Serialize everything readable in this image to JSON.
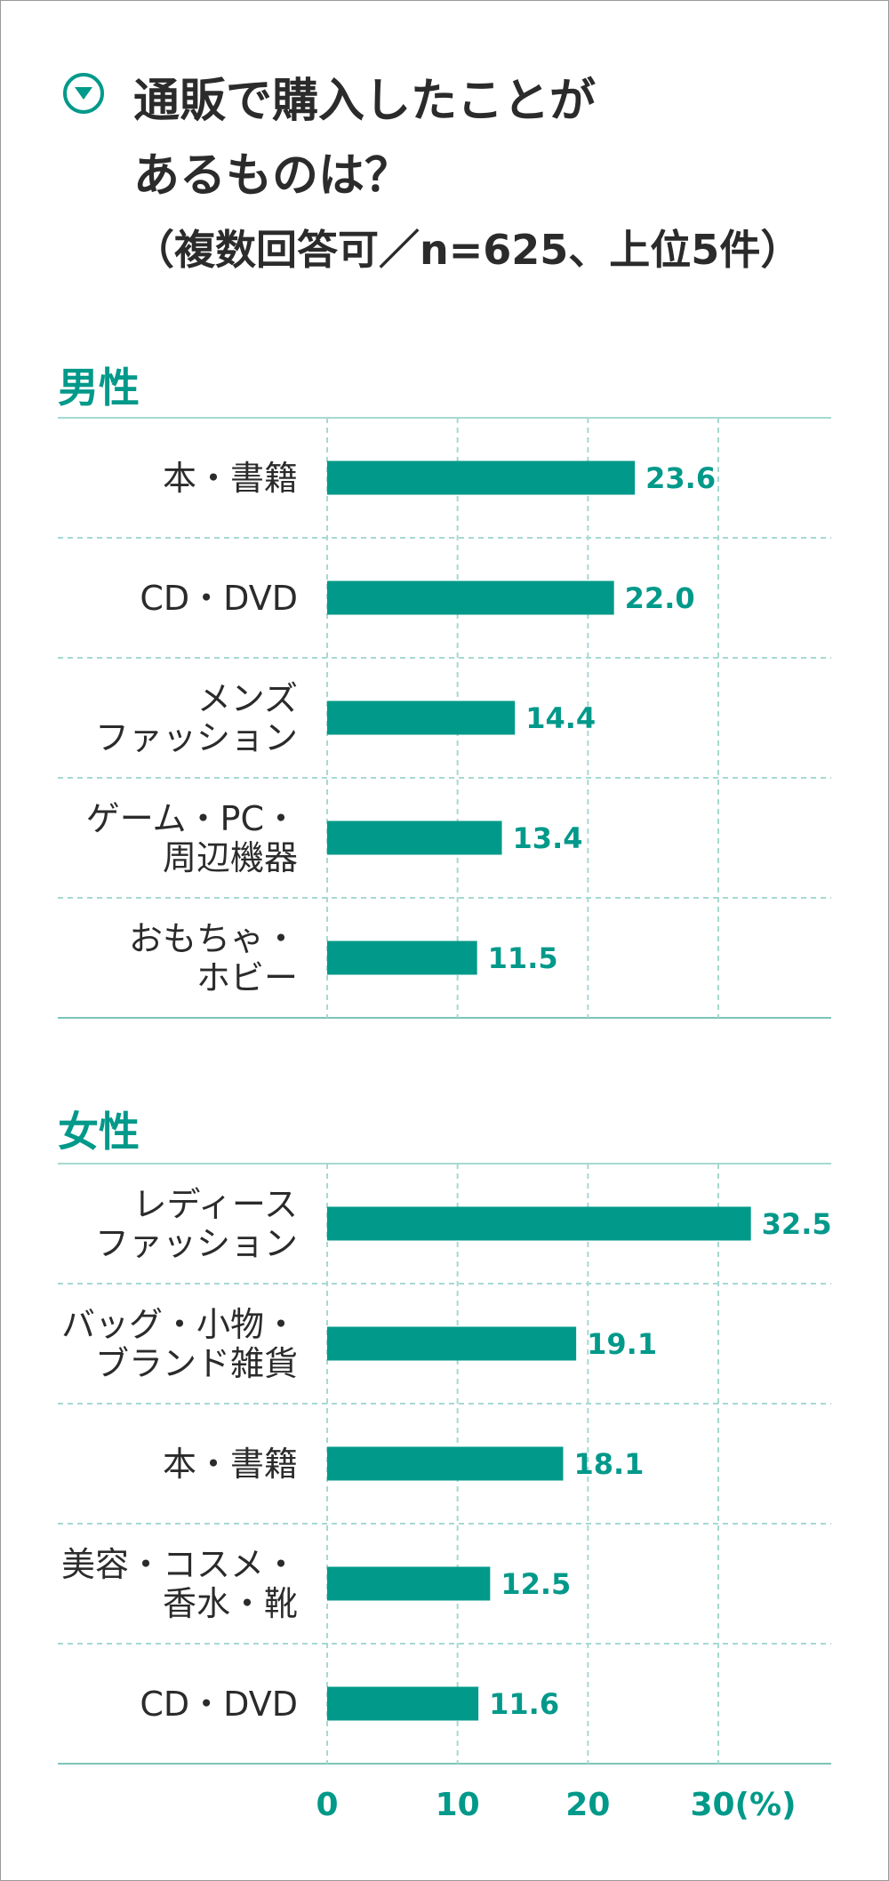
{
  "title": "通販で購入したことが\nあるものは？",
  "subtitle": "（複数回答可／n=625、上位5件）",
  "chart_data": [
    {
      "type": "bar",
      "title": "男性",
      "categories": [
        "本・書籍",
        "CD・DVD",
        "メンズ\nファッション",
        "ゲーム・PC・\n周辺機器",
        "おもちゃ・\nホビー"
      ],
      "values": [
        23.6,
        22.0,
        14.4,
        13.4,
        11.5
      ],
      "value_labels": [
        "23.6",
        "22.0",
        "14.4",
        "13.4",
        "11.5"
      ],
      "color": "#00998a",
      "xlim": [
        0,
        30
      ],
      "xticks": [
        0,
        10,
        20,
        30
      ],
      "grid": true
    },
    {
      "type": "bar",
      "title": "女性",
      "categories": [
        "レディース\nファッション",
        "バッグ・小物・\nブランド雑貨",
        "本・書籍",
        "美容・コスメ・\n香水・靴",
        "CD・DVD"
      ],
      "values": [
        32.5,
        19.1,
        18.1,
        12.5,
        11.6
      ],
      "value_labels": [
        "32.5",
        "19.1",
        "18.1",
        "12.5",
        "11.6"
      ],
      "color": "#00998a",
      "xlim": [
        0,
        30
      ],
      "xticks": [
        0,
        10,
        20,
        {
          "value": 30,
          "label": "30(%)"
        }
      ],
      "grid": true
    }
  ]
}
